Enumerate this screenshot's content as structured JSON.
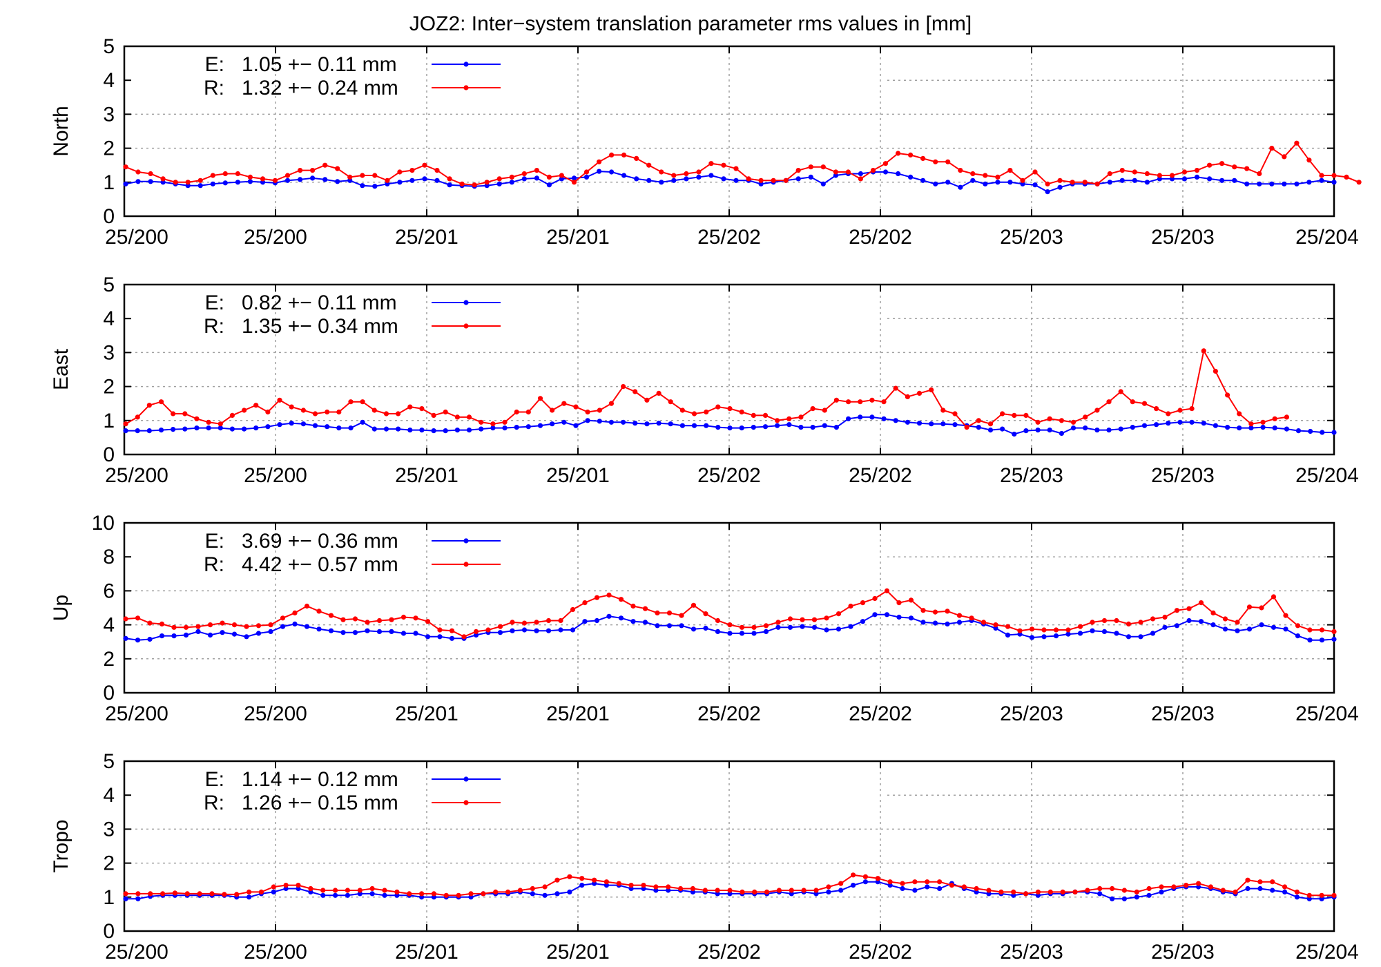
{
  "chart_data": {
    "title": "JOZ2: Inter−system translation parameter rms values in [mm]",
    "x_tick_labels": [
      "25/200",
      "25/200",
      "25/201",
      "25/201",
      "25/202",
      "25/202",
      "25/203",
      "25/203",
      "25/204"
    ],
    "colors": {
      "E": "#0000ff",
      "R": "#ff0000"
    },
    "grid": true,
    "legend_position": "top-left",
    "panels": [
      {
        "type": "line",
        "ylabel": "North",
        "ylim": [
          0,
          5
        ],
        "yticks": [
          0,
          1,
          2,
          3,
          4,
          5
        ],
        "series": [
          {
            "name": "E:",
            "legend": "1.05 +− 0.11 mm",
            "values": [
              0.95,
              1.02,
              1.02,
              1.0,
              0.95,
              0.9,
              0.9,
              0.95,
              0.98,
              1.0,
              1.02,
              1.0,
              0.98,
              1.05,
              1.08,
              1.12,
              1.08,
              1.02,
              1.05,
              0.9,
              0.88,
              0.95,
              1.0,
              1.05,
              1.1,
              1.05,
              0.92,
              0.9,
              0.88,
              0.9,
              0.95,
              1.0,
              1.1,
              1.12,
              0.92,
              1.1,
              1.12,
              1.15,
              1.32,
              1.3,
              1.2,
              1.1,
              1.05,
              1.0,
              1.05,
              1.1,
              1.15,
              1.2,
              1.1,
              1.05,
              1.05,
              0.95,
              1.0,
              1.05,
              1.1,
              1.15,
              0.95,
              1.2,
              1.25,
              1.25,
              1.3,
              1.3,
              1.25,
              1.15,
              1.05,
              0.95,
              1.0,
              0.85,
              1.05,
              0.95,
              1.0,
              1.0,
              0.95,
              0.92,
              0.72,
              0.85,
              0.95,
              0.95,
              0.95,
              1.0,
              1.05,
              1.05,
              1.0,
              1.1,
              1.1,
              1.1,
              1.15,
              1.1,
              1.05,
              1.05,
              0.95,
              0.95,
              0.95,
              0.95,
              0.95,
              1.0,
              1.05,
              1.0
            ]
          },
          {
            "name": "R:",
            "legend": "1.32 +− 0.24 mm",
            "values": [
              1.45,
              1.3,
              1.25,
              1.1,
              1.0,
              1.0,
              1.05,
              1.2,
              1.25,
              1.25,
              1.15,
              1.1,
              1.05,
              1.2,
              1.35,
              1.35,
              1.5,
              1.4,
              1.15,
              1.2,
              1.2,
              1.05,
              1.3,
              1.35,
              1.5,
              1.35,
              1.1,
              0.95,
              0.92,
              1.0,
              1.1,
              1.15,
              1.25,
              1.35,
              1.15,
              1.2,
              1.0,
              1.3,
              1.6,
              1.8,
              1.8,
              1.7,
              1.5,
              1.3,
              1.2,
              1.25,
              1.3,
              1.55,
              1.5,
              1.4,
              1.1,
              1.05,
              1.05,
              1.05,
              1.35,
              1.45,
              1.45,
              1.3,
              1.3,
              1.1,
              1.35,
              1.55,
              1.85,
              1.8,
              1.7,
              1.6,
              1.6,
              1.35,
              1.25,
              1.2,
              1.15,
              1.35,
              1.05,
              1.3,
              0.95,
              1.05,
              1.0,
              1.0,
              0.95,
              1.25,
              1.35,
              1.3,
              1.25,
              1.2,
              1.2,
              1.3,
              1.35,
              1.5,
              1.55,
              1.45,
              1.4,
              1.25,
              2.0,
              1.75,
              2.15,
              1.65,
              1.2,
              1.2,
              1.15,
              1.0
            ]
          }
        ]
      },
      {
        "type": "line",
        "ylabel": "East",
        "ylim": [
          0,
          5
        ],
        "yticks": [
          0,
          1,
          2,
          3,
          4,
          5
        ],
        "series": [
          {
            "name": "E:",
            "legend": "0.82 +− 0.11 mm",
            "values": [
              0.7,
              0.7,
              0.7,
              0.72,
              0.74,
              0.75,
              0.78,
              0.78,
              0.78,
              0.75,
              0.75,
              0.78,
              0.82,
              0.88,
              0.92,
              0.9,
              0.85,
              0.82,
              0.78,
              0.78,
              0.95,
              0.75,
              0.75,
              0.75,
              0.72,
              0.72,
              0.7,
              0.7,
              0.72,
              0.72,
              0.75,
              0.78,
              0.78,
              0.8,
              0.82,
              0.85,
              0.9,
              0.95,
              0.85,
              1.0,
              0.98,
              0.95,
              0.95,
              0.92,
              0.9,
              0.92,
              0.9,
              0.85,
              0.85,
              0.85,
              0.8,
              0.78,
              0.78,
              0.8,
              0.82,
              0.85,
              0.88,
              0.8,
              0.8,
              0.85,
              0.8,
              1.05,
              1.1,
              1.1,
              1.05,
              1.0,
              0.95,
              0.92,
              0.9,
              0.9,
              0.88,
              0.85,
              0.8,
              0.72,
              0.75,
              0.6,
              0.7,
              0.72,
              0.72,
              0.62,
              0.78,
              0.78,
              0.72,
              0.72,
              0.75,
              0.8,
              0.85,
              0.88,
              0.92,
              0.95,
              0.95,
              0.92,
              0.85,
              0.8,
              0.78,
              0.78,
              0.8,
              0.78,
              0.75,
              0.7,
              0.68,
              0.65,
              0.65
            ]
          },
          {
            "name": "R:",
            "legend": "1.35 +− 0.34 mm",
            "values": [
              0.9,
              1.1,
              1.45,
              1.55,
              1.2,
              1.2,
              1.05,
              0.95,
              0.9,
              1.15,
              1.3,
              1.45,
              1.25,
              1.6,
              1.4,
              1.3,
              1.2,
              1.25,
              1.25,
              1.55,
              1.55,
              1.3,
              1.2,
              1.2,
              1.4,
              1.35,
              1.15,
              1.25,
              1.1,
              1.1,
              0.95,
              0.9,
              0.95,
              1.25,
              1.25,
              1.65,
              1.3,
              1.5,
              1.4,
              1.25,
              1.3,
              1.5,
              2.0,
              1.85,
              1.6,
              1.8,
              1.55,
              1.3,
              1.2,
              1.25,
              1.4,
              1.35,
              1.25,
              1.15,
              1.15,
              1.0,
              1.05,
              1.1,
              1.35,
              1.3,
              1.6,
              1.55,
              1.55,
              1.6,
              1.55,
              1.95,
              1.7,
              1.8,
              1.9,
              1.3,
              1.2,
              0.8,
              1.0,
              0.9,
              1.2,
              1.15,
              1.15,
              0.95,
              1.05,
              1.0,
              0.95,
              1.1,
              1.3,
              1.55,
              1.85,
              1.55,
              1.5,
              1.35,
              1.2,
              1.3,
              1.35,
              3.05,
              2.45,
              1.75,
              1.2,
              0.9,
              0.95,
              1.05,
              1.1
            ]
          }
        ]
      },
      {
        "type": "line",
        "ylabel": "Up",
        "ylim": [
          0,
          10
        ],
        "yticks": [
          0,
          2,
          4,
          6,
          8,
          10
        ],
        "series": [
          {
            "name": "E:",
            "legend": "3.69 +− 0.36 mm",
            "values": [
              3.2,
              3.1,
              3.15,
              3.35,
              3.35,
              3.4,
              3.6,
              3.4,
              3.55,
              3.45,
              3.3,
              3.5,
              3.6,
              3.9,
              4.05,
              3.9,
              3.75,
              3.65,
              3.55,
              3.55,
              3.65,
              3.6,
              3.6,
              3.5,
              3.5,
              3.3,
              3.3,
              3.2,
              3.2,
              3.4,
              3.55,
              3.55,
              3.65,
              3.7,
              3.65,
              3.65,
              3.7,
              3.7,
              4.2,
              4.25,
              4.5,
              4.4,
              4.2,
              4.15,
              3.95,
              3.95,
              3.95,
              3.75,
              3.8,
              3.6,
              3.5,
              3.5,
              3.5,
              3.6,
              3.85,
              3.85,
              3.9,
              3.85,
              3.7,
              3.75,
              3.9,
              4.2,
              4.6,
              4.6,
              4.45,
              4.4,
              4.15,
              4.1,
              4.05,
              4.15,
              4.25,
              4.05,
              3.8,
              3.4,
              3.45,
              3.25,
              3.3,
              3.35,
              3.45,
              3.5,
              3.65,
              3.6,
              3.5,
              3.3,
              3.3,
              3.5,
              3.85,
              3.95,
              4.25,
              4.2,
              4.0,
              3.75,
              3.65,
              3.75,
              4.0,
              3.85,
              3.75,
              3.35,
              3.1,
              3.1,
              3.15
            ]
          },
          {
            "name": "R:",
            "legend": "4.42 +− 0.57 mm",
            "values": [
              4.35,
              4.4,
              4.1,
              4.05,
              3.85,
              3.85,
              3.9,
              4.0,
              4.1,
              4.0,
              3.9,
              3.95,
              4.0,
              4.4,
              4.7,
              5.1,
              4.8,
              4.55,
              4.3,
              4.35,
              4.15,
              4.25,
              4.3,
              4.45,
              4.4,
              4.2,
              3.7,
              3.65,
              3.3,
              3.6,
              3.7,
              3.9,
              4.15,
              4.1,
              4.15,
              4.25,
              4.25,
              4.9,
              5.3,
              5.6,
              5.75,
              5.5,
              5.1,
              4.95,
              4.7,
              4.7,
              4.55,
              5.15,
              4.65,
              4.25,
              4.0,
              3.85,
              3.85,
              3.95,
              4.15,
              4.35,
              4.3,
              4.3,
              4.4,
              4.65,
              5.1,
              5.3,
              5.55,
              6.0,
              5.3,
              5.45,
              4.85,
              4.75,
              4.8,
              4.55,
              4.4,
              4.15,
              4.0,
              3.9,
              3.65,
              3.75,
              3.7,
              3.7,
              3.7,
              3.9,
              4.15,
              4.25,
              4.25,
              4.05,
              4.15,
              4.35,
              4.45,
              4.85,
              4.95,
              5.3,
              4.7,
              4.35,
              4.15,
              5.05,
              5.0,
              5.65,
              4.55,
              3.95,
              3.7,
              3.7,
              3.6
            ]
          }
        ]
      },
      {
        "type": "line",
        "ylabel": "Tropo",
        "ylim": [
          0,
          5
        ],
        "yticks": [
          0,
          1,
          2,
          3,
          4,
          5
        ],
        "series": [
          {
            "name": "E:",
            "legend": "1.14 +− 0.12 mm",
            "values": [
              0.95,
              0.95,
              1.02,
              1.05,
              1.05,
              1.05,
              1.05,
              1.05,
              1.05,
              1.0,
              1.0,
              1.1,
              1.15,
              1.25,
              1.25,
              1.15,
              1.05,
              1.05,
              1.05,
              1.1,
              1.1,
              1.05,
              1.05,
              1.05,
              1.0,
              1.0,
              1.0,
              1.0,
              1.0,
              1.1,
              1.1,
              1.1,
              1.15,
              1.1,
              1.05,
              1.1,
              1.15,
              1.35,
              1.4,
              1.35,
              1.35,
              1.25,
              1.25,
              1.2,
              1.2,
              1.2,
              1.15,
              1.15,
              1.1,
              1.1,
              1.1,
              1.1,
              1.1,
              1.15,
              1.1,
              1.15,
              1.1,
              1.15,
              1.2,
              1.35,
              1.45,
              1.45,
              1.35,
              1.25,
              1.2,
              1.3,
              1.25,
              1.4,
              1.25,
              1.15,
              1.1,
              1.1,
              1.05,
              1.1,
              1.05,
              1.1,
              1.1,
              1.15,
              1.15,
              1.1,
              0.95,
              0.95,
              1.0,
              1.05,
              1.15,
              1.25,
              1.3,
              1.3,
              1.25,
              1.15,
              1.1,
              1.25,
              1.25,
              1.2,
              1.15,
              1.0,
              0.95,
              0.95,
              1.0
            ]
          },
          {
            "name": "R:",
            "legend": "1.26 +− 0.15 mm",
            "values": [
              1.1,
              1.1,
              1.1,
              1.1,
              1.12,
              1.1,
              1.1,
              1.1,
              1.08,
              1.08,
              1.15,
              1.15,
              1.3,
              1.35,
              1.35,
              1.25,
              1.2,
              1.2,
              1.2,
              1.2,
              1.25,
              1.2,
              1.15,
              1.1,
              1.1,
              1.1,
              1.05,
              1.05,
              1.1,
              1.1,
              1.15,
              1.15,
              1.2,
              1.25,
              1.3,
              1.5,
              1.6,
              1.55,
              1.5,
              1.45,
              1.4,
              1.35,
              1.35,
              1.3,
              1.3,
              1.25,
              1.25,
              1.2,
              1.2,
              1.2,
              1.15,
              1.15,
              1.15,
              1.2,
              1.2,
              1.2,
              1.2,
              1.3,
              1.4,
              1.65,
              1.6,
              1.55,
              1.45,
              1.4,
              1.45,
              1.45,
              1.45,
              1.35,
              1.3,
              1.25,
              1.2,
              1.15,
              1.15,
              1.1,
              1.15,
              1.15,
              1.15,
              1.15,
              1.2,
              1.25,
              1.25,
              1.2,
              1.15,
              1.25,
              1.3,
              1.3,
              1.35,
              1.4,
              1.3,
              1.2,
              1.15,
              1.5,
              1.45,
              1.45,
              1.3,
              1.15,
              1.05,
              1.05,
              1.05
            ]
          }
        ]
      }
    ]
  }
}
